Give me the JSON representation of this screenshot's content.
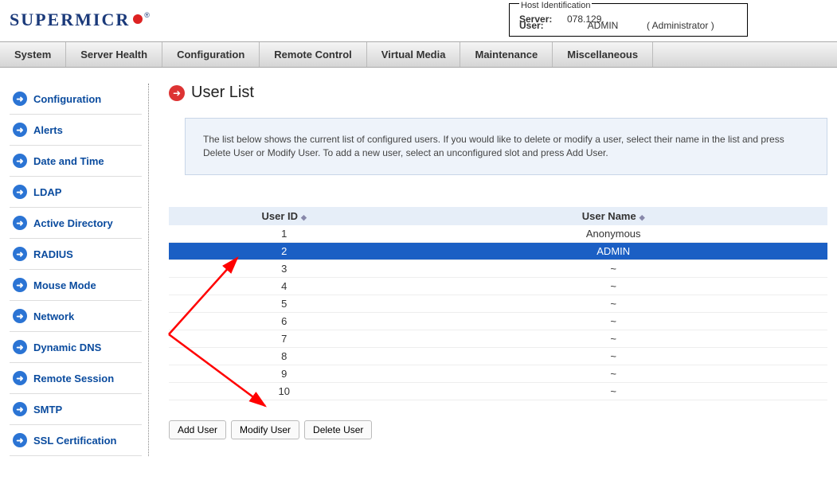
{
  "logo": {
    "text": "SUPERMICR"
  },
  "host": {
    "title": "Host Identification",
    "server_label": "Server:",
    "server_value": "078.129.",
    "user_label": "User:",
    "user_value": "ADMIN",
    "role": "( Administrator )"
  },
  "nav": [
    "System",
    "Server Health",
    "Configuration",
    "Remote Control",
    "Virtual Media",
    "Maintenance",
    "Miscellaneous"
  ],
  "sidebar": {
    "items": [
      "Configuration",
      "Alerts",
      "Date and Time",
      "LDAP",
      "Active Directory",
      "RADIUS",
      "Mouse Mode",
      "Network",
      "Dynamic DNS",
      "Remote Session",
      "SMTP",
      "SSL Certification"
    ]
  },
  "page": {
    "title": "User List",
    "info": "The list below shows the current list of configured users. If you would like to delete or modify a user, select their name in the list and press Delete User or Modify User. To add a new user, select an unconfigured slot and press Add User."
  },
  "table": {
    "col_userid": "User ID",
    "col_username": "User Name",
    "rows": [
      {
        "id": "1",
        "name": "Anonymous",
        "selected": false
      },
      {
        "id": "2",
        "name": "ADMIN",
        "selected": true
      },
      {
        "id": "3",
        "name": "~",
        "selected": false
      },
      {
        "id": "4",
        "name": "~",
        "selected": false
      },
      {
        "id": "5",
        "name": "~",
        "selected": false
      },
      {
        "id": "6",
        "name": "~",
        "selected": false
      },
      {
        "id": "7",
        "name": "~",
        "selected": false
      },
      {
        "id": "8",
        "name": "~",
        "selected": false
      },
      {
        "id": "9",
        "name": "~",
        "selected": false
      },
      {
        "id": "10",
        "name": "~",
        "selected": false
      }
    ]
  },
  "buttons": {
    "add": "Add User",
    "modify": "Modify User",
    "delete": "Delete User"
  },
  "annotation_color": "#ff0000"
}
